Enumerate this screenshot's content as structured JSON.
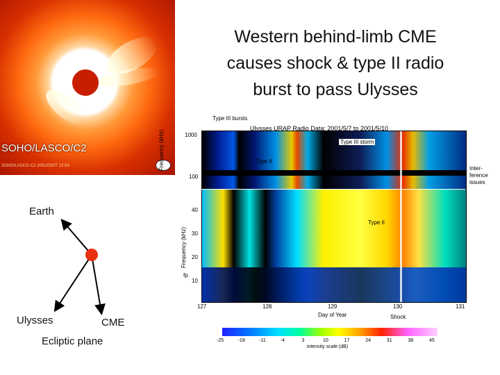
{
  "title": "Western behind-limb CME causes shock & type II radio burst to pass Ulysses",
  "lasco": {
    "label": "SOHO/LASCO/C2",
    "stamp": "SOHO/LASCO-C2 2001/05/07 12:54"
  },
  "diagram": {
    "earth": "Earth",
    "ulysses": "Ulysses",
    "cme": "CME",
    "ecliptic": "Ecliptic plane",
    "sun_color": "#e83010"
  },
  "spectrogram": {
    "title": "Ulysses URAP Radio Data: 2001/5/7 to 2001/5/10",
    "annotations": {
      "type3_bursts": "Type III bursts",
      "type3_storm": "Type III storm",
      "type2_upper": "Type II",
      "type2_lower": "Type II",
      "interference": "Inter-ference issues",
      "shock": "Shock"
    },
    "upper_y_label": "Frequency (kHz)",
    "lower_y_label": "Frequency (kHz)",
    "upper_y_ticks": [
      "1000",
      "100"
    ],
    "lower_y_ticks": [
      "40",
      "30",
      "20",
      "10"
    ],
    "lower_fp_tick": "fp",
    "x_label": "Day of Year",
    "x_ticks": [
      "127",
      "128",
      "129",
      "130",
      "131"
    ]
  },
  "colorbar": {
    "label": "intensity scale (dB)",
    "ticks": [
      "-25",
      "-18",
      "-11",
      "-4",
      "3",
      "10",
      "17",
      "24",
      "31",
      "38",
      "45"
    ]
  }
}
